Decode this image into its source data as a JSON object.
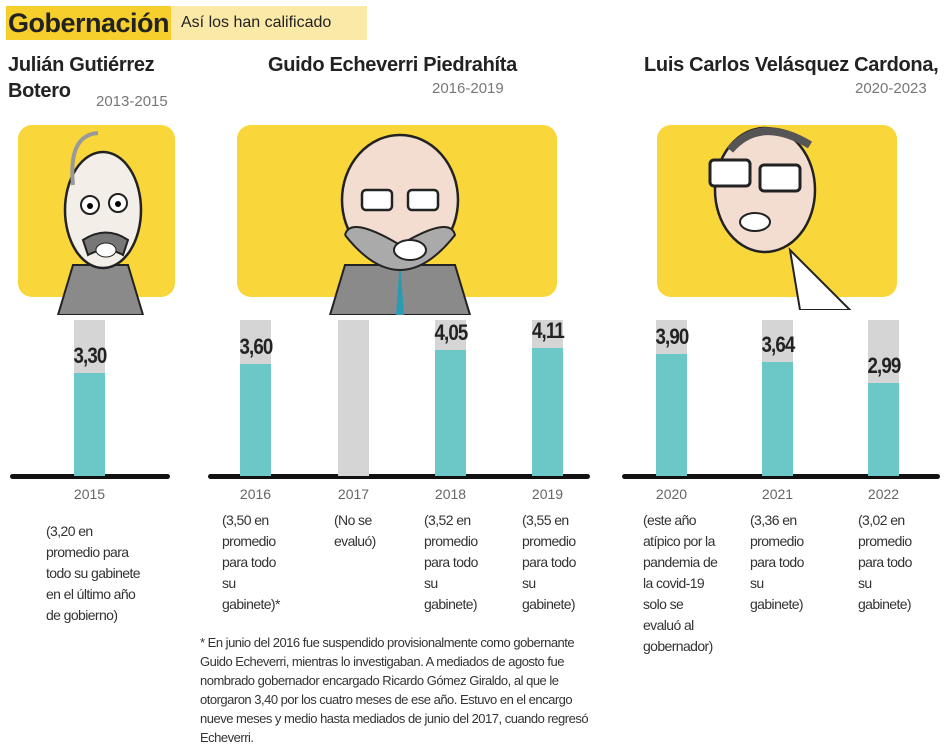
{
  "header": {
    "title": "Gobernación",
    "subtitle": "Así los han calificado"
  },
  "colors": {
    "yellow": "#f6cf2c",
    "teal": "#6cc7c7",
    "gray": "#d5d5d5"
  },
  "governors": [
    {
      "name": "Julián Gutiérrez\nBotero",
      "period": "2013-2015"
    },
    {
      "name": "Guido Echeverri Piedrahíta",
      "period": "2016-2019"
    },
    {
      "name": "Luis Carlos Velásquez Cardona,",
      "period": "2020-2023"
    }
  ],
  "chart_data": {
    "type": "bar",
    "ylim": [
      0,
      5
    ],
    "categories": [
      "2015",
      "2016",
      "2017",
      "2018",
      "2019",
      "2020",
      "2021",
      "2022"
    ],
    "values": [
      3.3,
      3.6,
      null,
      4.05,
      4.11,
      3.9,
      3.64,
      2.99
    ],
    "labels": [
      "3,30",
      "3,60",
      "",
      "4,05",
      "4,11",
      "3,90",
      "3,64",
      "2,99"
    ],
    "notes": [
      "(3,20 en\npromedio para\ntodo su gabinete\nen el último año\nde gobierno)",
      "(3,50 en\npromedio\npara todo\nsu\ngabinete)*",
      "(No se\nevaluó)",
      "(3,52 en\npromedio\npara todo\nsu\ngabinete)",
      "(3,55 en\npromedio\npara todo\nsu\ngabinete)",
      "(este año\natípico por la\npandemia de\nla covid-19\nsolo se\nevaluó al\ngobernador)",
      "(3,36 en\npromedio\npara todo\nsu\ngabinete)",
      "(3,02 en\npromedio\npara todo\nsu\ngabinete)"
    ]
  },
  "footnote": "* En junio del 2016 fue suspendido provisionalmente como gobernante\nGuido Echeverri, mientras lo investigaban. A mediados de agosto fue\nnombrado gobernador encargado Ricardo Gómez Giraldo, al que le\notorgaron 3,40 por los cuatro meses de ese año. Estuvo en el encargo\nnueve meses y medio hasta mediados de junio del 2017, cuando regresó\nEcheverri."
}
